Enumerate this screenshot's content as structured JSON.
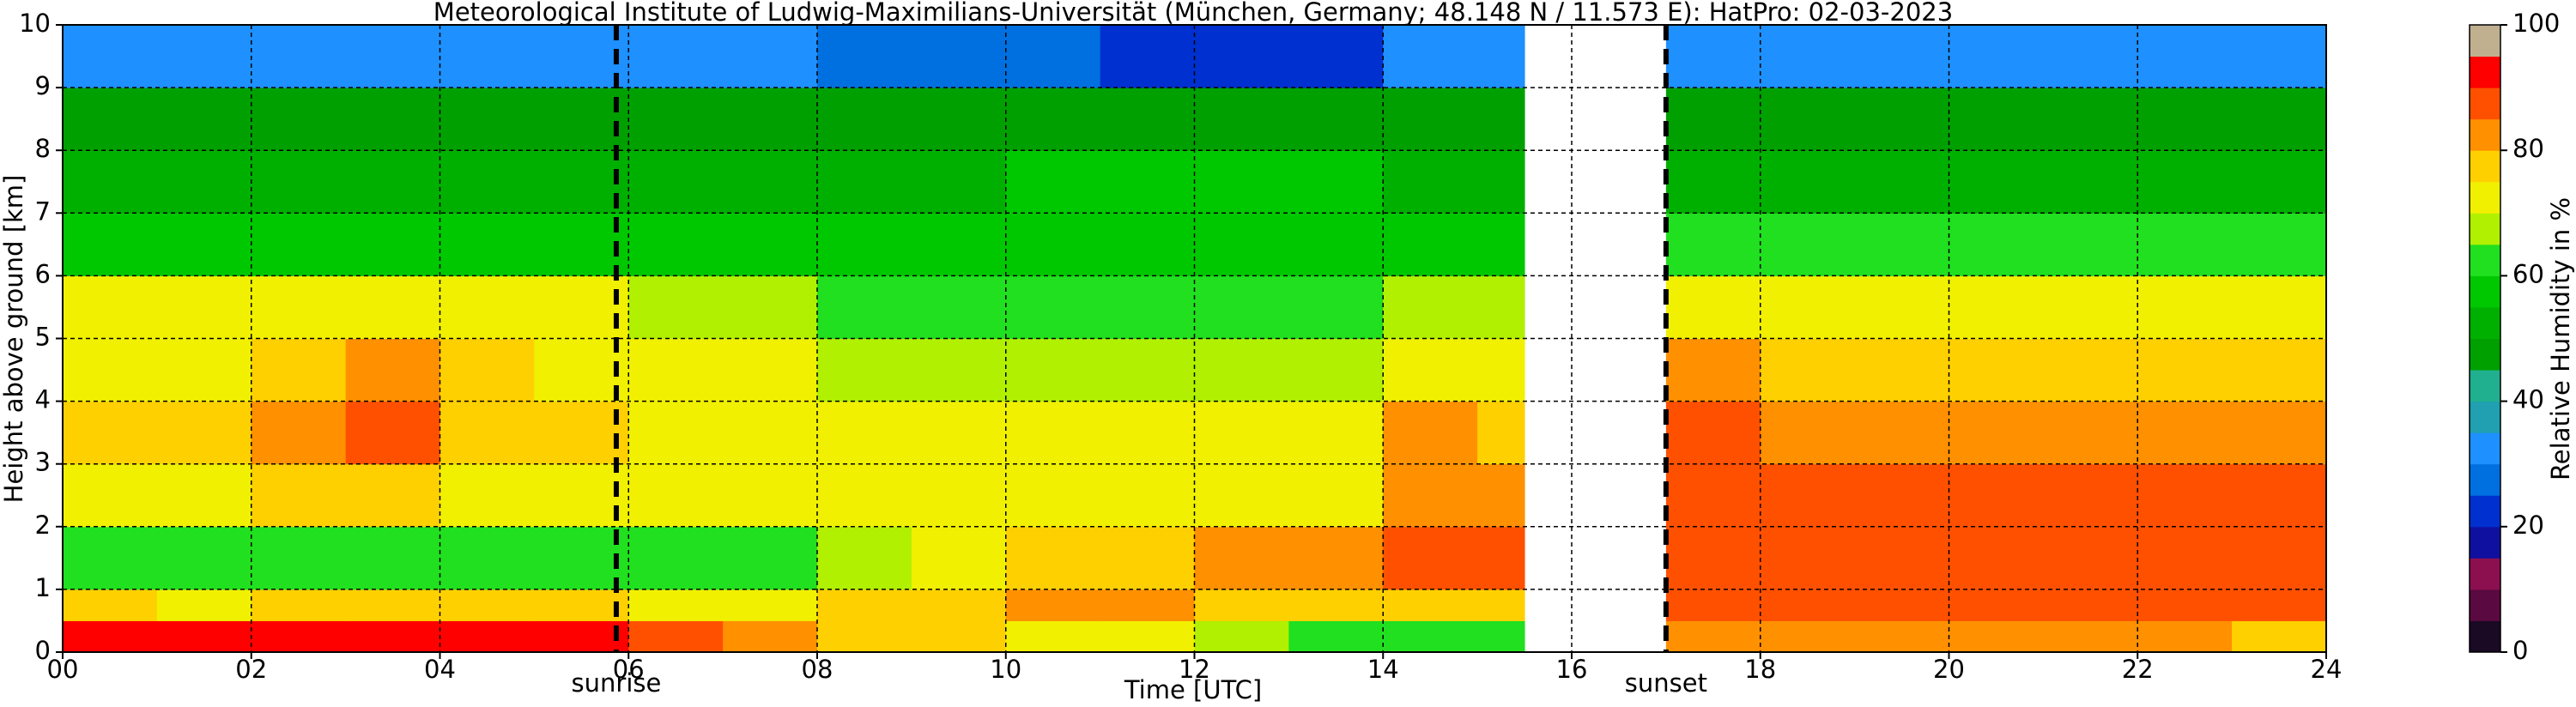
{
  "chart_data": {
    "type": "heatmap",
    "title": "Meteorological Institute of Ludwig-Maximilians-Universität (München, Germany; 48.148 N / 11.573 E):    HatPro: 02-03-2023",
    "x_label": "Time [UTC]",
    "y_label": "Height above ground [km]",
    "colorbar_label": "Relative Humidity in %",
    "xlim": [
      0,
      24
    ],
    "ylim": [
      0,
      10
    ],
    "xticks": [
      {
        "value": 0,
        "label": "00"
      },
      {
        "value": 2,
        "label": "02"
      },
      {
        "value": 4,
        "label": "04"
      },
      {
        "value": 6,
        "label": "06"
      },
      {
        "value": 8,
        "label": "08"
      },
      {
        "value": 10,
        "label": "10"
      },
      {
        "value": 12,
        "label": "12"
      },
      {
        "value": 14,
        "label": "14"
      },
      {
        "value": 16,
        "label": "16"
      },
      {
        "value": 18,
        "label": "18"
      },
      {
        "value": 20,
        "label": "20"
      },
      {
        "value": 22,
        "label": "22"
      },
      {
        "value": 24,
        "label": "24"
      }
    ],
    "yticks": [
      0,
      1,
      2,
      3,
      4,
      5,
      6,
      7,
      8,
      9,
      10
    ],
    "grid": true,
    "x_edges": [
      0,
      1,
      2,
      3,
      4,
      5,
      6,
      7,
      8,
      9,
      10,
      11,
      12,
      13,
      14,
      15,
      15.5,
      17,
      18,
      19,
      20,
      21,
      22,
      23,
      24
    ],
    "y_edges": [
      0,
      0.5,
      1,
      2,
      3,
      4,
      5,
      6,
      7,
      8,
      9,
      10
    ],
    "z": [
      [
        90,
        75,
        62,
        72,
        76,
        74,
        70,
        55,
        52,
        47,
        33
      ],
      [
        90,
        74,
        63,
        73,
        77,
        74,
        70,
        55,
        52,
        47,
        33
      ],
      [
        91,
        76,
        62,
        76,
        82,
        78,
        72,
        56,
        51,
        46,
        32
      ],
      [
        91,
        76,
        62,
        78,
        85,
        80,
        74,
        56,
        51,
        46,
        32
      ],
      [
        90,
        75,
        63,
        73,
        78,
        75,
        70,
        55,
        52,
        47,
        33
      ],
      [
        90,
        75,
        62,
        72,
        76,
        73,
        70,
        55,
        52,
        47,
        32
      ],
      [
        85,
        72,
        62,
        70,
        73,
        72,
        68,
        58,
        52,
        47,
        32
      ],
      [
        84,
        72,
        63,
        70,
        73,
        72,
        67,
        58,
        52,
        46,
        30
      ],
      [
        78,
        76,
        68,
        70,
        72,
        68,
        64,
        57,
        52,
        45,
        28
      ],
      [
        76,
        79,
        72,
        70,
        72,
        67,
        63,
        57,
        53,
        45,
        27
      ],
      [
        72,
        80,
        76,
        70,
        70,
        66,
        62,
        57,
        55,
        45,
        25
      ],
      [
        70,
        80,
        77,
        71,
        70,
        66,
        62,
        57,
        55,
        45,
        24
      ],
      [
        66,
        78,
        80,
        72,
        70,
        66,
        62,
        57,
        55,
        45,
        22
      ],
      [
        64,
        77,
        80,
        72,
        70,
        66,
        62,
        57,
        55,
        45,
        22
      ],
      [
        62,
        75,
        88,
        84,
        80,
        72,
        66,
        58,
        52,
        45,
        30
      ],
      [
        62,
        75,
        86,
        82,
        78,
        70,
        65,
        58,
        52,
        45,
        30
      ],
      [
        null,
        null,
        null,
        null,
        null,
        null,
        null,
        null,
        null,
        null,
        null
      ],
      [
        80,
        85,
        88,
        87,
        85,
        80,
        74,
        60,
        52,
        46,
        32
      ],
      [
        80,
        86,
        88,
        86,
        83,
        77,
        72,
        60,
        52,
        46,
        33
      ],
      [
        81,
        86,
        89,
        86,
        82,
        76,
        71,
        60,
        52,
        46,
        33
      ],
      [
        80,
        86,
        88,
        86,
        82,
        76,
        71,
        60,
        52,
        46,
        33
      ],
      [
        80,
        87,
        88,
        86,
        82,
        76,
        71,
        60,
        52,
        46,
        33
      ],
      [
        80,
        86,
        88,
        85,
        81,
        76,
        71,
        60,
        52,
        46,
        33
      ],
      [
        79,
        86,
        87,
        85,
        81,
        75,
        70,
        60,
        52,
        46,
        33
      ]
    ],
    "levels": [
      0,
      5,
      10,
      15,
      20,
      25,
      30,
      35,
      40,
      45,
      50,
      55,
      60,
      65,
      70,
      75,
      80,
      85,
      90,
      95,
      100
    ],
    "level_colors": [
      "#1a0a24",
      "#5a0a40",
      "#8c1050",
      "#1010a0",
      "#0030d0",
      "#0070e0",
      "#1e90ff",
      "#20a0b0",
      "#20b090",
      "#00a000",
      "#00b000",
      "#00c800",
      "#20e020",
      "#b0f000",
      "#f0f000",
      "#ffd000",
      "#ff9000",
      "#ff5000",
      "#ff0000",
      "#c0b090"
    ],
    "colorbar_ticks": [
      0,
      20,
      40,
      60,
      80,
      100
    ],
    "annotations": [
      {
        "text": "sunrise",
        "x": 5.87
      },
      {
        "text": "sunset",
        "x": 17.0
      }
    ]
  }
}
